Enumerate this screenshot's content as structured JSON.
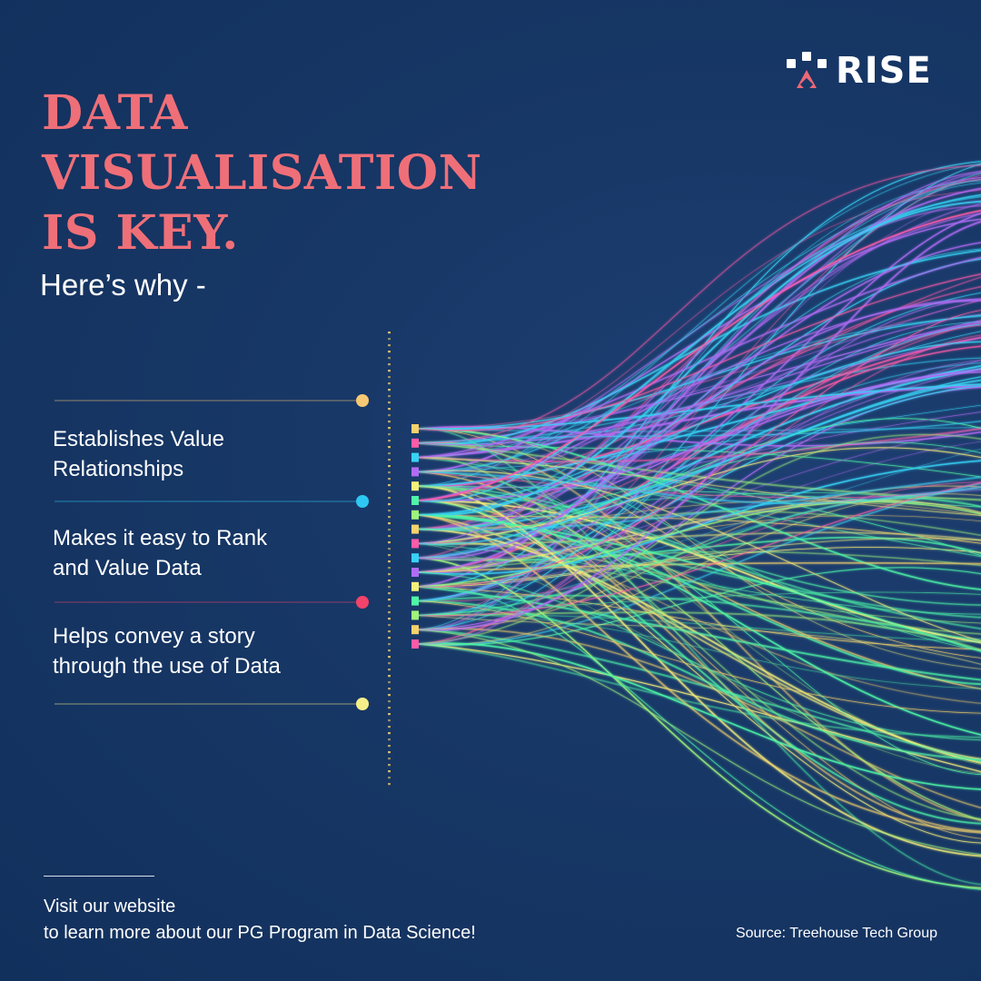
{
  "brand": {
    "name": "RISE",
    "colors": {
      "accent": "#ef6f78",
      "background": "#173766",
      "text": "#ffffff"
    }
  },
  "headline": {
    "lines": [
      "DATA",
      "VISUALISATION",
      "IS KEY."
    ],
    "subtitle": "Here’s why -"
  },
  "points": [
    {
      "lines": [
        "Establishes Value",
        "Relationships"
      ]
    },
    {
      "lines": [
        "Makes it easy to Rank",
        "and Value Data"
      ]
    },
    {
      "lines": [
        "Helps convey a story",
        "through the use of Data"
      ]
    }
  ],
  "markers": [
    {
      "color": "#f7c873"
    },
    {
      "color": "#2ec8f2"
    },
    {
      "color": "#f2436a"
    },
    {
      "color": "#f5ef8a"
    }
  ],
  "flow_palette": [
    "#f7d26b",
    "#ff5aa8",
    "#36d3f5",
    "#b26bf5",
    "#f5ef7a",
    "#4df5a6",
    "#9ff57a"
  ],
  "footer": {
    "cta_lines": [
      "Visit our website",
      "to learn more about our PG Program in Data Science!"
    ],
    "source": "Source: Treehouse Tech Group"
  }
}
